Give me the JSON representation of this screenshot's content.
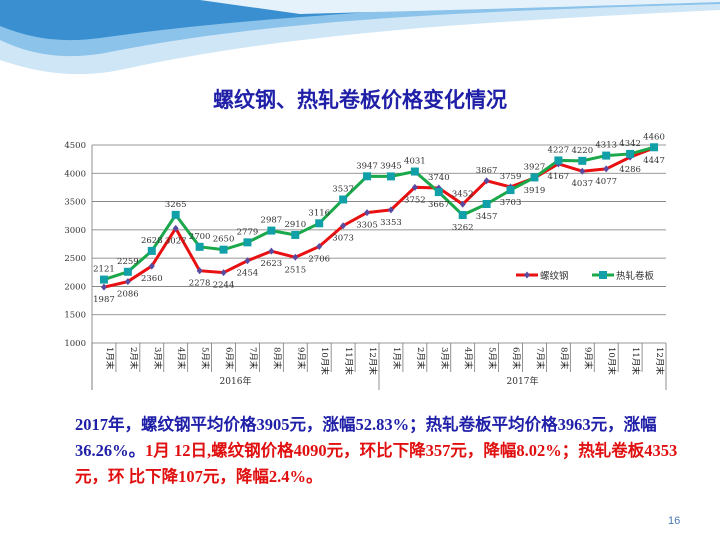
{
  "slide": {
    "title": "螺纹钢、热轧卷板价格变化情况",
    "page_number": "16",
    "summary": {
      "blue_part": "2017年，螺纹钢平均价格3905元，涨幅52.83%；热轧卷板平均价格3963元，涨幅36.26%。",
      "red_part": "1月 12日,螺纹钢价格4090元，环比下降357元，降幅8.02%；热轧卷板4353元，环 比下降107元，降幅2.4%。"
    }
  },
  "chart_data": {
    "type": "line",
    "title": "螺纹钢、热轧卷板价格变化情况",
    "categories": [
      "1月末",
      "2月末",
      "3月末",
      "4月末",
      "5月末",
      "6月末",
      "7月末",
      "8月末",
      "9月末",
      "10月末",
      "11月末",
      "12月末",
      "1月末",
      "2月末",
      "3月末",
      "4月末",
      "5月末",
      "6月末",
      "7月末",
      "8月末",
      "9月末",
      "10月末",
      "11月末",
      "12月末"
    ],
    "year_groups": [
      {
        "label": "2016年",
        "count": 12
      },
      {
        "label": "2017年",
        "count": 12
      }
    ],
    "ylim": [
      1000,
      4500
    ],
    "yticks": [
      1000,
      1500,
      2000,
      2500,
      3000,
      3500,
      4000,
      4500
    ],
    "grid": true,
    "legend": "right",
    "series": [
      {
        "name": "螺纹钢",
        "color": "#e81010",
        "marker": "diamond",
        "marker_color": "#5a4aa0",
        "values": [
          1987,
          2086,
          2360,
          3027,
          2278,
          2244,
          2454,
          2623,
          2515,
          2706,
          3073,
          3305,
          3353,
          3752,
          3740,
          3452,
          3867,
          3759,
          3919,
          4167,
          4037,
          4077,
          4286,
          4447
        ]
      },
      {
        "name": "热轧卷板",
        "color": "#1aa84a",
        "marker": "square",
        "marker_color": "#12a0a8",
        "values": [
          2121,
          2259,
          2628,
          3265,
          2700,
          2650,
          2779,
          2987,
          2910,
          3116,
          3537,
          3947,
          3945,
          4031,
          3667,
          3262,
          3457,
          3703,
          3927,
          4227,
          4220,
          4313,
          4342,
          4460
        ]
      }
    ]
  }
}
